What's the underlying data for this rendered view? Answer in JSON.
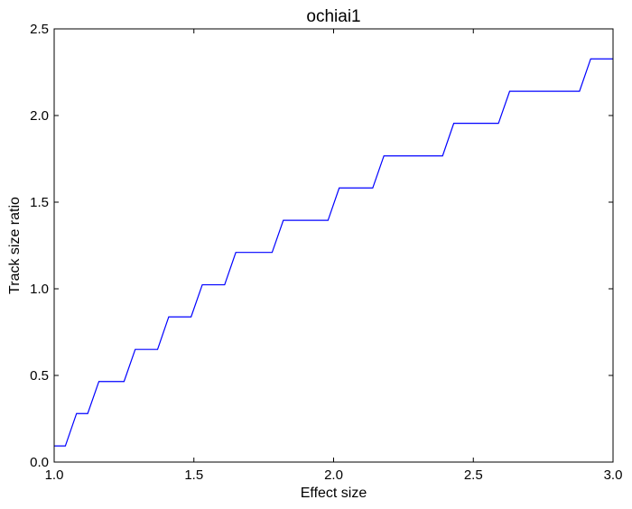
{
  "chart_data": {
    "type": "line",
    "title": "ochiai1",
    "xlabel": "Effect size",
    "ylabel": "Track size ratio",
    "xlim": [
      1.0,
      3.0
    ],
    "ylim": [
      0.0,
      2.5
    ],
    "xticks": [
      1.0,
      1.5,
      2.0,
      2.5,
      3.0
    ],
    "xtick_labels": [
      "1.0",
      "1.5",
      "2.0",
      "2.5",
      "3.0"
    ],
    "yticks": [
      0.0,
      0.5,
      1.0,
      1.5,
      2.0,
      2.5
    ],
    "ytick_labels": [
      "0.0",
      "0.5",
      "1.0",
      "1.5",
      "2.0",
      "2.5"
    ],
    "grid": false,
    "series": [
      {
        "color": "#0000ff",
        "x": [
          1.0,
          1.04,
          1.08,
          1.12,
          1.16,
          1.25,
          1.29,
          1.37,
          1.41,
          1.49,
          1.53,
          1.61,
          1.65,
          1.78,
          1.82,
          1.98,
          2.02,
          2.14,
          2.18,
          2.39,
          2.43,
          2.59,
          2.63,
          2.88,
          2.92,
          3.0
        ],
        "y": [
          0.093,
          0.093,
          0.28,
          0.28,
          0.465,
          0.465,
          0.65,
          0.65,
          0.838,
          0.838,
          1.023,
          1.023,
          1.21,
          1.21,
          1.395,
          1.395,
          1.582,
          1.582,
          1.767,
          1.767,
          1.955,
          1.955,
          2.14,
          2.14,
          2.327,
          2.327
        ]
      }
    ]
  }
}
